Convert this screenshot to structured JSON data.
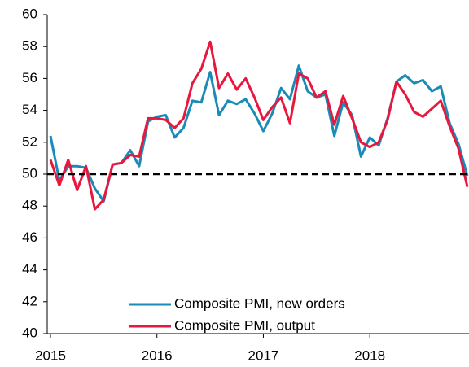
{
  "chart_data": {
    "type": "line",
    "categories": [
      "2015",
      null,
      null,
      null,
      null,
      null,
      null,
      null,
      null,
      null,
      null,
      null,
      "2016",
      null,
      null,
      null,
      null,
      null,
      null,
      null,
      null,
      null,
      null,
      null,
      "2017",
      null,
      null,
      null,
      null,
      null,
      null,
      null,
      null,
      null,
      null,
      null,
      "2018",
      null,
      null,
      null,
      null,
      null,
      null,
      null,
      null,
      null,
      null,
      null
    ],
    "series": [
      {
        "name": "Composite PMI, new orders",
        "color": "#1a8bb7",
        "values": [
          52.4,
          49.6,
          50.5,
          50.5,
          50.4,
          49.1,
          48.3,
          50.6,
          50.7,
          51.5,
          50.5,
          53.3,
          53.6,
          53.7,
          52.3,
          52.9,
          54.6,
          54.5,
          56.4,
          53.7,
          54.6,
          54.4,
          54.7,
          53.8,
          52.7,
          53.8,
          55.4,
          54.7,
          56.8,
          55.2,
          54.8,
          55.0,
          52.4,
          54.5,
          53.7,
          51.1,
          52.3,
          51.8,
          53.5,
          55.8,
          56.2,
          55.7,
          55.9,
          55.2,
          55.5,
          53.2,
          51.9,
          49.9
        ]
      },
      {
        "name": "Composite PMI, output",
        "color": "#e8173d",
        "values": [
          50.9,
          49.3,
          50.9,
          49.0,
          50.5,
          47.8,
          48.4,
          50.6,
          50.7,
          51.2,
          51.1,
          53.5,
          53.5,
          53.4,
          52.9,
          53.5,
          55.7,
          56.6,
          58.3,
          55.4,
          56.3,
          55.3,
          56.0,
          54.8,
          53.4,
          54.2,
          54.8,
          53.2,
          56.3,
          56.0,
          54.8,
          55.2,
          53.1,
          54.9,
          53.5,
          52.0,
          51.7,
          52.0,
          53.4,
          55.8,
          55.0,
          53.9,
          53.6,
          54.1,
          54.6,
          53.0,
          51.6,
          49.2
        ]
      }
    ],
    "reference_line": 50,
    "ylim": [
      40,
      60
    ],
    "yticks": [
      40,
      42,
      44,
      46,
      48,
      50,
      52,
      54,
      56,
      58,
      60
    ],
    "legend": "bottom"
  }
}
